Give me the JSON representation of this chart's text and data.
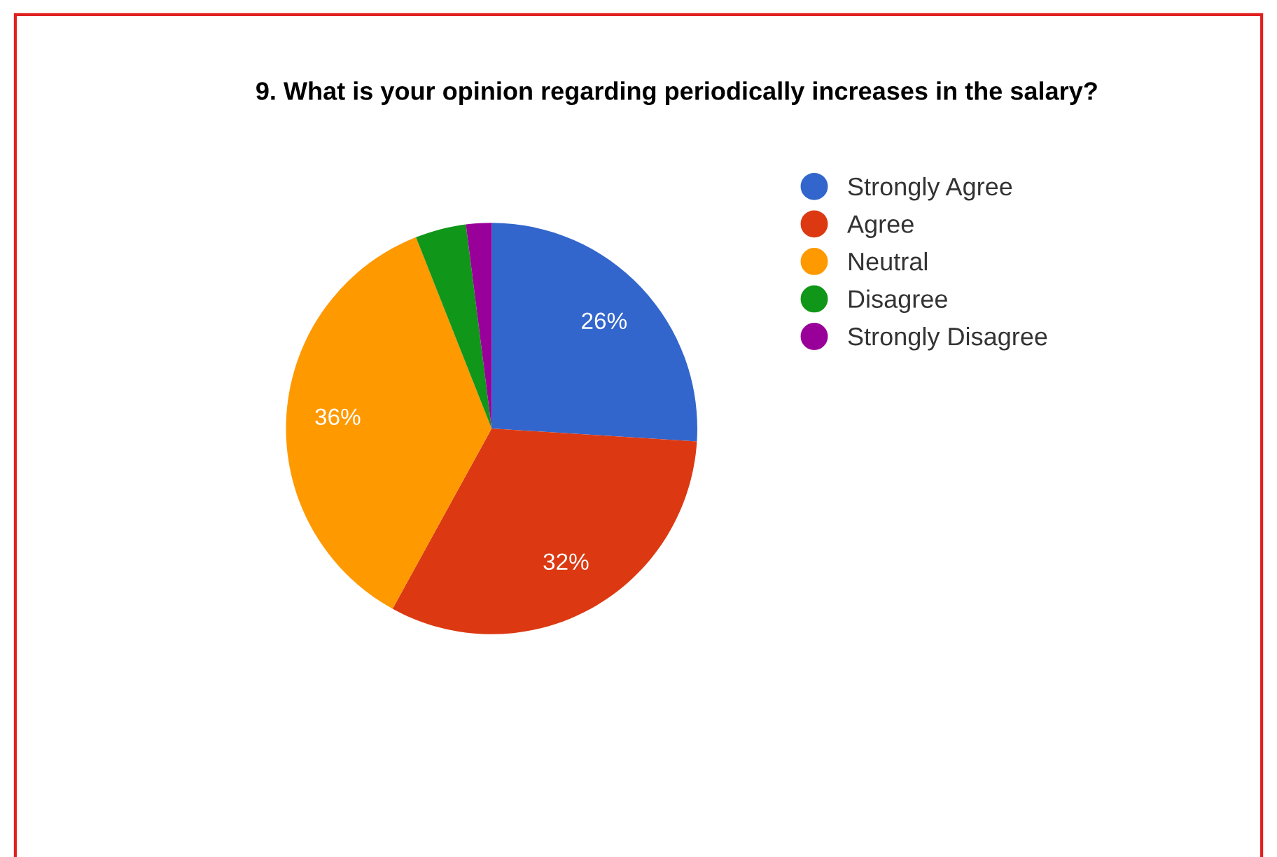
{
  "chart_data": {
    "type": "pie",
    "title": "9. What is your opinion regarding periodically increases in the salary?",
    "categories": [
      "Strongly Agree",
      "Agree",
      "Neutral",
      "Disagree",
      "Strongly Disagree"
    ],
    "values": [
      26,
      32,
      36,
      4,
      2
    ],
    "colors": [
      "#3366cc",
      "#dc3912",
      "#ff9900",
      "#109618",
      "#990099"
    ],
    "value_labels": [
      "26%",
      "32%",
      "36%",
      null,
      null
    ],
    "legend": "right"
  }
}
